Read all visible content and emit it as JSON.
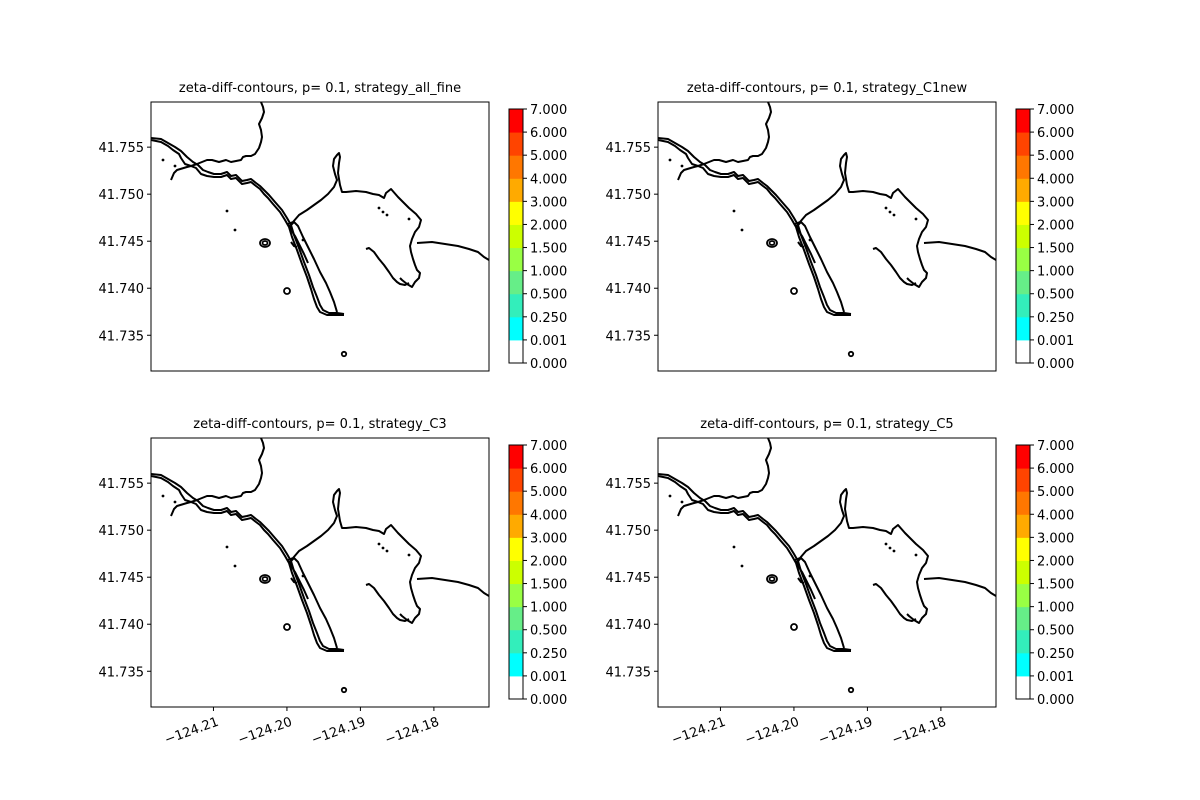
{
  "chart_data": [
    {
      "type": "contour",
      "title": "zeta-diff-contours, p= 0.1, strategy_all_fine",
      "xlabel": "",
      "ylabel": "",
      "xlim": [
        -124.2185,
        -124.1725
      ],
      "ylim": [
        41.7312,
        41.7598
      ],
      "x_ticks": [],
      "y_ticks": [
        "41.735",
        "41.740",
        "41.745",
        "41.750",
        "41.755"
      ],
      "colorbar": {
        "ticks": [
          "0.000",
          "0.001",
          "0.250",
          "0.500",
          "1.000",
          "1.500",
          "2.000",
          "3.000",
          "4.000",
          "5.000",
          "6.000",
          "7.000"
        ],
        "colors": [
          "#ffffff",
          "#00ffff",
          "#33eebb",
          "#66ee88",
          "#99ff44",
          "#ccff00",
          "#ffff00",
          "#ffaa00",
          "#ff7700",
          "#ff4400",
          "#ff0000"
        ]
      },
      "filled_levels": "none"
    },
    {
      "type": "contour",
      "title": "zeta-diff-contours, p= 0.1, strategy_C1new",
      "xlabel": "",
      "ylabel": "",
      "xlim": [
        -124.2185,
        -124.1725
      ],
      "ylim": [
        41.7312,
        41.7598
      ],
      "x_ticks": [],
      "y_ticks": [
        "41.735",
        "41.740",
        "41.745",
        "41.750",
        "41.755"
      ],
      "colorbar": {
        "ticks": [
          "0.000",
          "0.001",
          "0.250",
          "0.500",
          "1.000",
          "1.500",
          "2.000",
          "3.000",
          "4.000",
          "5.000",
          "6.000",
          "7.000"
        ],
        "colors": [
          "#ffffff",
          "#00ffff",
          "#33eebb",
          "#66ee88",
          "#99ff44",
          "#ccff00",
          "#ffff00",
          "#ffaa00",
          "#ff7700",
          "#ff4400",
          "#ff0000"
        ]
      },
      "filled_levels": "none"
    },
    {
      "type": "contour",
      "title": "zeta-diff-contours, p= 0.1, strategy_C3",
      "xlabel": "",
      "ylabel": "",
      "xlim": [
        -124.2185,
        -124.1725
      ],
      "ylim": [
        41.7312,
        41.7598
      ],
      "x_ticks": [
        "−124.21",
        "−124.20",
        "−124.19",
        "−124.18"
      ],
      "y_ticks": [
        "41.735",
        "41.740",
        "41.745",
        "41.750",
        "41.755"
      ],
      "colorbar": {
        "ticks": [
          "0.000",
          "0.001",
          "0.250",
          "0.500",
          "1.000",
          "1.500",
          "2.000",
          "3.000",
          "4.000",
          "5.000",
          "6.000",
          "7.000"
        ],
        "colors": [
          "#ffffff",
          "#00ffff",
          "#33eebb",
          "#66ee88",
          "#99ff44",
          "#ccff00",
          "#ffff00",
          "#ffaa00",
          "#ff7700",
          "#ff4400",
          "#ff0000"
        ]
      },
      "filled_levels": "none"
    },
    {
      "type": "contour",
      "title": "zeta-diff-contours, p= 0.1, strategy_C5",
      "xlabel": "",
      "ylabel": "",
      "xlim": [
        -124.2185,
        -124.1725
      ],
      "ylim": [
        41.7312,
        41.7598
      ],
      "x_ticks": [
        "−124.21",
        "−124.20",
        "−124.19",
        "−124.18"
      ],
      "y_ticks": [
        "41.735",
        "41.740",
        "41.745",
        "41.750",
        "41.755"
      ],
      "colorbar": {
        "ticks": [
          "0.000",
          "0.001",
          "0.250",
          "0.500",
          "1.000",
          "1.500",
          "2.000",
          "3.000",
          "4.000",
          "5.000",
          "6.000",
          "7.000"
        ],
        "colors": [
          "#ffffff",
          "#00ffff",
          "#33eebb",
          "#66ee88",
          "#99ff44",
          "#ccff00",
          "#ffff00",
          "#ffaa00",
          "#ff7700",
          "#ff4400",
          "#ff0000"
        ]
      },
      "filled_levels": "none"
    }
  ]
}
